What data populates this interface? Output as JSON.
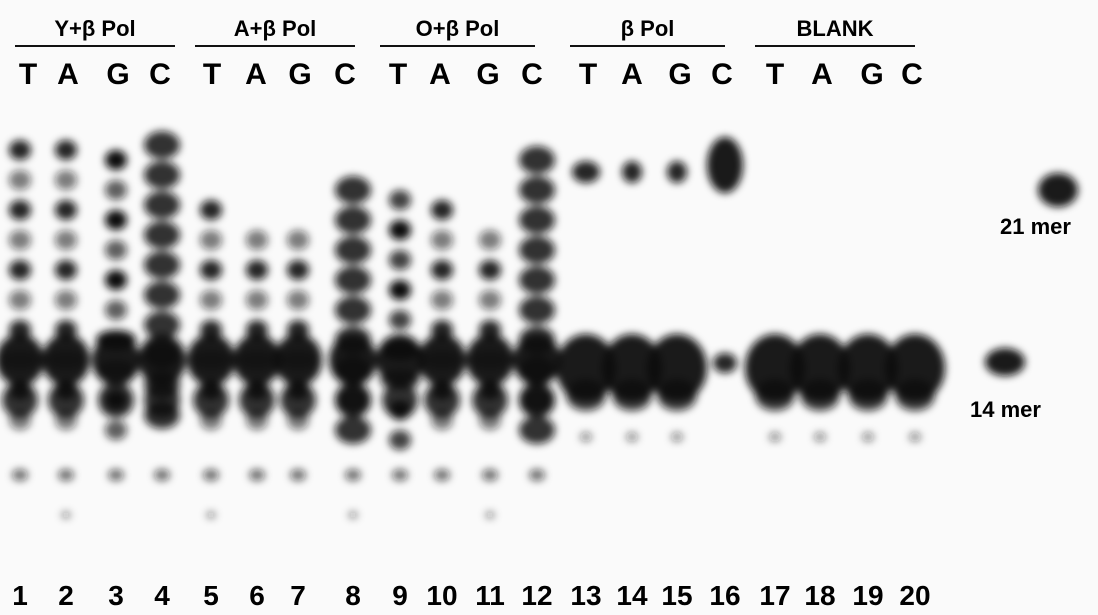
{
  "groups": [
    {
      "label": "Y+β Pol",
      "bases": [
        "T",
        "A",
        "G",
        "C"
      ]
    },
    {
      "label": "A+β Pol",
      "bases": [
        "T",
        "A",
        "G",
        "C"
      ]
    },
    {
      "label": "O+β Pol",
      "bases": [
        "T",
        "A",
        "G",
        "C"
      ]
    },
    {
      "label": "β Pol",
      "bases": [
        "T",
        "A",
        "G",
        "C"
      ]
    },
    {
      "label": "BLANK",
      "bases": [
        "T",
        "A",
        "G",
        "C"
      ]
    }
  ],
  "lanes": [
    "1",
    "2",
    "3",
    "4",
    "5",
    "6",
    "7",
    "8",
    "9",
    "10",
    "11",
    "12",
    "13",
    "14",
    "15",
    "16",
    "17",
    "18",
    "19",
    "20"
  ],
  "markers": [
    "21 mer",
    "14 mer"
  ]
}
